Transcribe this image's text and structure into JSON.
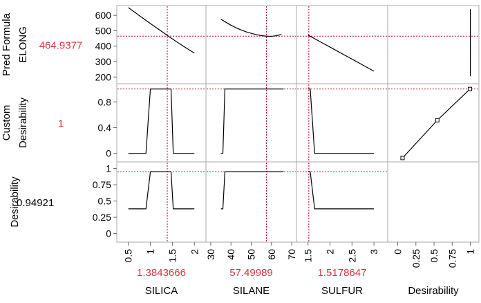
{
  "chart_data": {
    "type": "line",
    "rows": [
      {
        "label_lines": [
          "Pred Formula",
          "ELONG"
        ],
        "current_value": "464.9377",
        "value_color": "#e0303f",
        "ylim": [
          170,
          650
        ],
        "ticks": [
          200,
          300,
          400,
          500,
          600
        ],
        "tick_labels": [
          "200",
          "300",
          "400",
          "500",
          "600"
        ],
        "crosshair": 464.9377
      },
      {
        "label_lines": [
          "Custom",
          "Desirability"
        ],
        "current_value": "1",
        "value_color": "#e0303f",
        "ylim": [
          -0.1,
          1.05
        ],
        "ticks": [
          0,
          0.4,
          0.8
        ],
        "tick_labels": [
          "0",
          "0.4",
          "0.8"
        ],
        "crosshair": 1
      },
      {
        "label_lines": [
          "Desirability"
        ],
        "current_value": "0.94921",
        "value_color": "#000000",
        "ylim": [
          -0.1,
          1.07
        ],
        "ticks": [
          0,
          0.25,
          0.5,
          0.75,
          1
        ],
        "tick_labels": [
          "0",
          "0.25",
          "0.5",
          "0.75",
          "1"
        ],
        "crosshair": 0.94921
      }
    ],
    "columns": [
      {
        "name": "SILICA",
        "current_value": "1.3843666",
        "current": 1.3843666,
        "xlim": [
          0.3,
          2.2
        ],
        "ticks": [
          0.5,
          1,
          1.5,
          2
        ],
        "tick_labels": [
          "0.5",
          "1",
          "1.5",
          "2"
        ]
      },
      {
        "name": "SILANE",
        "current_value": "57.49989",
        "current": 57.49989,
        "xlim": [
          29,
          71
        ],
        "ticks": [
          30,
          40,
          50,
          60,
          70
        ],
        "tick_labels": [
          "30",
          "40",
          "50",
          "60",
          "70"
        ]
      },
      {
        "name": "SULFUR",
        "current_value": "1.5178647",
        "current": 1.5178647,
        "xlim": [
          1.3,
          3.25
        ],
        "ticks": [
          1.5,
          2,
          2.5,
          3
        ],
        "tick_labels": [
          "1.5",
          "2",
          "2.5",
          "3"
        ]
      },
      {
        "name": "Desirability",
        "current_value": "",
        "xlim": [
          -0.1,
          1.08
        ],
        "ticks": [
          0,
          0.25,
          0.5,
          0.75,
          1
        ],
        "tick_labels": [
          "0",
          "0.25",
          "0.5",
          "0.75",
          "1"
        ]
      }
    ],
    "series": [
      {
        "row": 0,
        "col": 0,
        "x": [
          0.5,
          0.75,
          1,
          1.25,
          1.5,
          1.75,
          2
        ],
        "y": [
          650,
          598,
          547,
          497,
          447,
          400,
          355
        ]
      },
      {
        "row": 0,
        "col": 1,
        "x": [
          35,
          40,
          45,
          50,
          55,
          60,
          65
        ],
        "y": [
          575,
          536,
          505,
          483,
          469,
          464,
          476
        ]
      },
      {
        "row": 0,
        "col": 2,
        "x": [
          1.5,
          2,
          2.5,
          3
        ],
        "y": [
          472,
          394,
          316,
          238
        ]
      },
      {
        "row": 1,
        "col": 0,
        "x": [
          0.5,
          0.7,
          0.9,
          1.0,
          1.4,
          1.47,
          1.52,
          2
        ],
        "y": [
          0,
          0,
          0,
          1,
          1,
          1,
          0,
          0
        ]
      },
      {
        "row": 1,
        "col": 1,
        "x": [
          35,
          36,
          37,
          66
        ],
        "y": [
          0,
          0,
          1,
          1
        ]
      },
      {
        "row": 1,
        "col": 2,
        "x": [
          1.5,
          1.55,
          1.65,
          3
        ],
        "y": [
          1,
          1,
          0,
          0
        ]
      },
      {
        "row": 2,
        "col": 0,
        "x": [
          0.5,
          0.7,
          0.9,
          1.0,
          1.4,
          1.47,
          1.52,
          2
        ],
        "y": [
          0.38,
          0.38,
          0.38,
          0.949,
          0.949,
          0.949,
          0.38,
          0.38
        ]
      },
      {
        "row": 2,
        "col": 1,
        "x": [
          35,
          36,
          37,
          66
        ],
        "y": [
          0.38,
          0.38,
          0.949,
          0.949
        ]
      },
      {
        "row": 2,
        "col": 2,
        "x": [
          1.5,
          1.55,
          1.65,
          3
        ],
        "y": [
          0.949,
          0.949,
          0.38,
          0.38
        ]
      }
    ],
    "response_desirability": {
      "row": 0,
      "col": 3,
      "x": [
        1,
        1
      ],
      "y": [
        205,
        640
      ]
    },
    "desirability_function": {
      "row": 1,
      "col": 3,
      "x": [
        0.066,
        0.545,
        0.995
      ],
      "y": [
        -0.072,
        0.515,
        1.0
      ]
    }
  }
}
